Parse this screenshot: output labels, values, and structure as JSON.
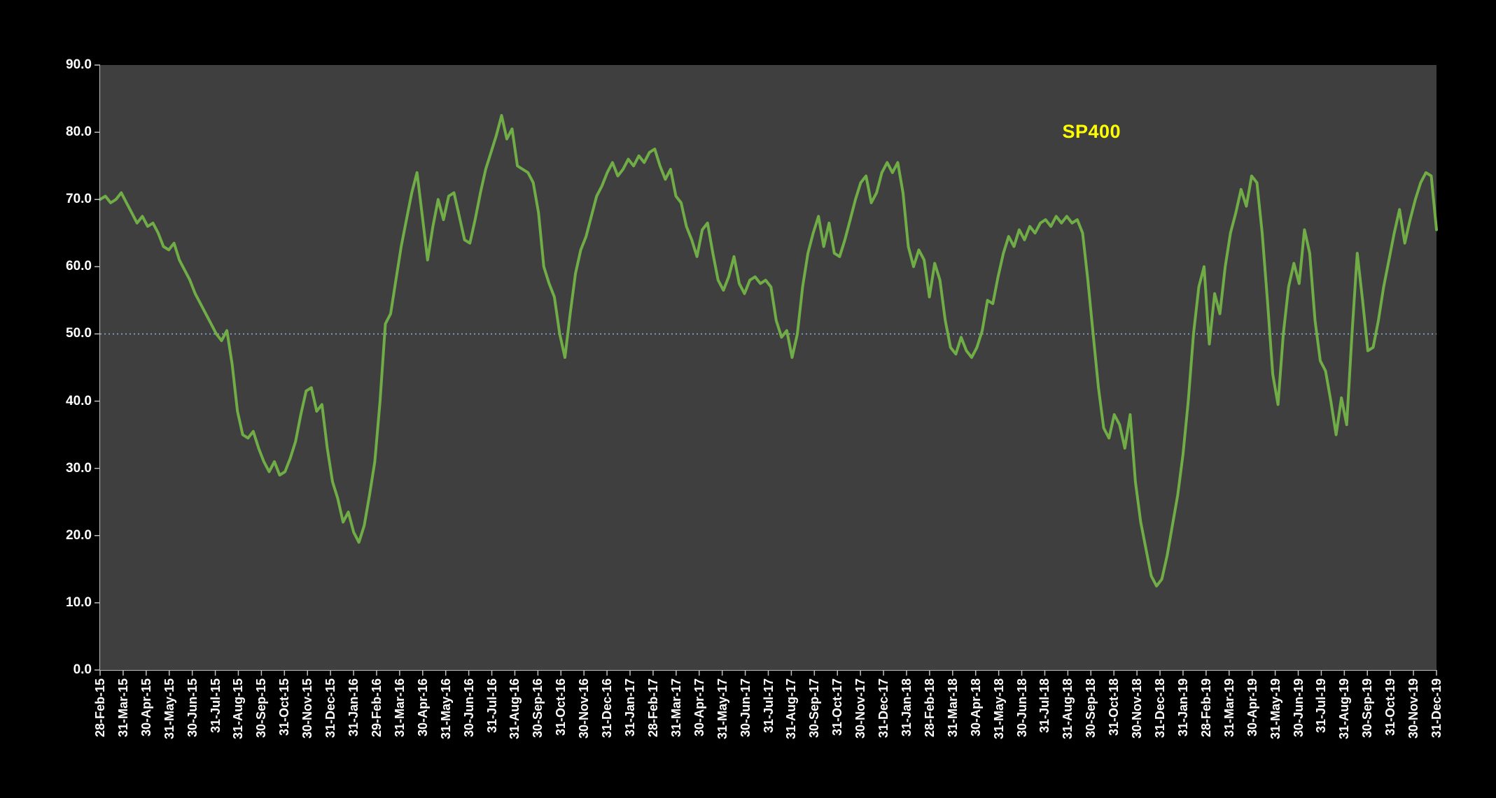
{
  "chart_data": {
    "type": "line",
    "title": "",
    "series": [
      {
        "name": "SP400",
        "color": "#70AD47",
        "values": [
          70,
          70.5,
          69.5,
          70,
          71,
          69.5,
          68,
          66.5,
          67.5,
          66,
          66.5,
          65,
          63,
          62.5,
          63.5,
          61,
          59.5,
          58,
          56,
          54.5,
          53,
          51.5,
          50,
          49,
          50.5,
          45.5,
          38.5,
          35,
          34.5,
          35.5,
          33,
          31,
          29.5,
          31,
          29,
          29.5,
          31.5,
          34,
          38,
          41.5,
          42,
          38.5,
          39.5,
          33,
          28,
          25.5,
          22,
          23.5,
          20.5,
          19,
          21.5,
          26,
          31,
          40,
          51.5,
          53,
          58,
          63,
          67,
          71,
          74,
          67.5,
          61,
          66,
          70,
          67,
          70.5,
          71,
          67.5,
          64,
          63.5,
          67,
          71,
          74.5,
          77,
          79.5,
          82.5,
          79,
          80.5,
          75,
          74.5,
          74,
          72.5,
          68,
          60,
          57.5,
          55.5,
          50,
          46.5,
          53,
          59,
          62.5,
          64.5,
          67.5,
          70.5,
          72,
          74,
          75.5,
          73.5,
          74.5,
          76,
          75,
          76.5,
          75.5,
          77,
          77.5,
          75,
          73,
          74.5,
          70.5,
          69.5,
          66,
          64,
          61.5,
          65.5,
          66.5,
          62,
          58,
          56.5,
          58.5,
          61.5,
          57.5,
          56,
          58,
          58.5,
          57.5,
          58,
          57,
          52,
          49.5,
          50.5,
          46.5,
          50,
          57,
          62,
          65,
          67.5,
          63,
          66.5,
          62,
          61.5,
          64,
          67,
          70,
          72.5,
          73.5,
          69.5,
          71,
          74,
          75.5,
          74,
          75.5,
          71,
          63,
          60,
          62.5,
          61,
          55.5,
          60.5,
          58,
          52,
          48,
          47,
          49.5,
          47.5,
          46.5,
          48,
          50.5,
          55,
          54.5,
          58.5,
          62,
          64.5,
          63,
          65.5,
          64,
          66,
          65,
          66.5,
          67,
          66,
          67.5,
          66.5,
          67.5,
          66.5,
          67,
          65,
          58,
          50,
          42,
          36,
          34.5,
          38,
          36.5,
          33,
          38,
          28,
          22,
          18,
          14,
          12.5,
          13.5,
          17,
          21.5,
          26,
          32,
          40,
          50,
          57,
          60,
          48.5,
          56,
          53,
          60,
          65,
          68,
          71.5,
          69,
          73.5,
          72.5,
          65,
          55,
          44,
          39.5,
          50,
          57,
          60.5,
          57.5,
          65.5,
          62,
          52,
          46,
          44.5,
          40,
          35,
          40.5,
          36.5,
          50,
          62,
          55,
          47.5,
          48,
          52,
          57,
          61,
          65,
          68.5,
          63.5,
          67,
          70,
          72.5,
          74,
          73.5,
          65.5
        ]
      }
    ],
    "x_tick_labels": [
      "28-Feb-15",
      "31-Mar-15",
      "30-Apr-15",
      "31-May-15",
      "30-Jun-15",
      "31-Jul-15",
      "31-Aug-15",
      "30-Sep-15",
      "31-Oct-15",
      "30-Nov-15",
      "31-Dec-15",
      "31-Jan-16",
      "29-Feb-16",
      "31-Mar-16",
      "30-Apr-16",
      "31-May-16",
      "30-Jun-16",
      "31-Jul-16",
      "31-Aug-16",
      "30-Sep-16",
      "31-Oct-16",
      "30-Nov-16",
      "31-Dec-16",
      "31-Jan-17",
      "28-Feb-17",
      "31-Mar-17",
      "30-Apr-17",
      "31-May-17",
      "30-Jun-17",
      "31-Jul-17",
      "31-Aug-17",
      "30-Sep-17",
      "31-Oct-17",
      "30-Nov-17",
      "31-Dec-17",
      "31-Jan-18",
      "28-Feb-18",
      "31-Mar-18",
      "30-Apr-18",
      "31-May-18",
      "30-Jun-18",
      "31-Jul-18",
      "31-Aug-18",
      "30-Sep-18",
      "31-Oct-18",
      "30-Nov-18",
      "31-Dec-18",
      "31-Jan-19",
      "28-Feb-19",
      "31-Mar-19",
      "30-Apr-19",
      "31-May-19",
      "30-Jun-19",
      "31-Jul-19",
      "31-Aug-19",
      "30-Sep-19",
      "31-Oct-19",
      "30-Nov-19",
      "31-Dec-19"
    ],
    "y_tick_labels": [
      "0.0",
      "10.0",
      "20.0",
      "30.0",
      "40.0",
      "50.0",
      "60.0",
      "70.0",
      "80.0",
      "90.0"
    ],
    "ylim": [
      0,
      90
    ],
    "ytick_step": 10,
    "grid": "off",
    "legend": "none",
    "reference_line": {
      "value": 50,
      "color": "#8DB4E2",
      "style": "dotted"
    },
    "annotation": {
      "text": "SP400",
      "color": "#FFFF00",
      "x_frac": 0.72,
      "y_value": 80
    },
    "colors": {
      "background": "#000000",
      "plot_background": "#3F3F3F",
      "axis_text": "#FFFFFF",
      "axis_line": "#BFBFBF"
    }
  }
}
